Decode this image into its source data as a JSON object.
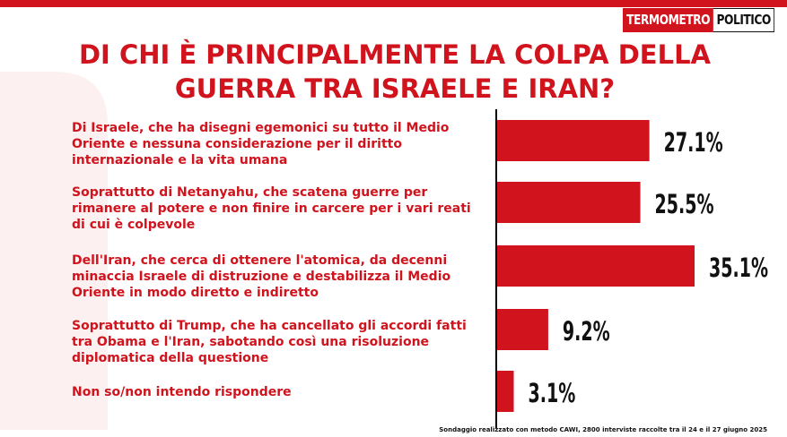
{
  "header": {
    "logo_part1": "TERMOMETRO",
    "logo_part2": "POLITICO"
  },
  "chart_data": {
    "type": "bar",
    "title": "DI CHI È PRINCIPALMENTE LA COLPA DELLA GUERRA TRA ISRAELE E IRAN?",
    "title_lines": [
      "DI CHI È PRINCIPALMENTE LA COLPA DELLA",
      "GUERRA TRA ISRAELE E IRAN?"
    ],
    "orientation": "horizontal",
    "categories": [
      "Di Israele, che ha disegni egemonici su tutto il Medio Oriente e nessuna considerazione per il diritto internazionale e la vita umana",
      "Soprattutto di Netanyahu, che scatena guerre per rimanere al potere e non finire in carcere per i vari reati di cui è colpevole",
      "Dell'Iran, che cerca di ottenere l'atomica, da decenni minaccia Israele di distruzione e destabilizza il Medio Oriente in modo diretto e indiretto",
      "Soprattutto di Trump, che ha cancellato gli accordi fatti tra Obama e l'Iran, sabotando così una risoluzione diplomatica della questione",
      "Non so/non intendo rispondere"
    ],
    "values": [
      27.1,
      25.5,
      35.1,
      9.2,
      3.1
    ],
    "value_labels": [
      "27.1%",
      "25.5%",
      "35.1%",
      "9.2%",
      "3.1%"
    ],
    "xlim": [
      0,
      50
    ],
    "grid": false,
    "bar_color": "#d0131d",
    "label_color": "#d0131d"
  },
  "footnote": "Sondaggio realizzato con metodo CAWI, 2800 interviste raccolte tra il 24 e il 27 giugno 2025",
  "colors": {
    "brand_red": "#d0131d",
    "text_dark": "#111111"
  }
}
